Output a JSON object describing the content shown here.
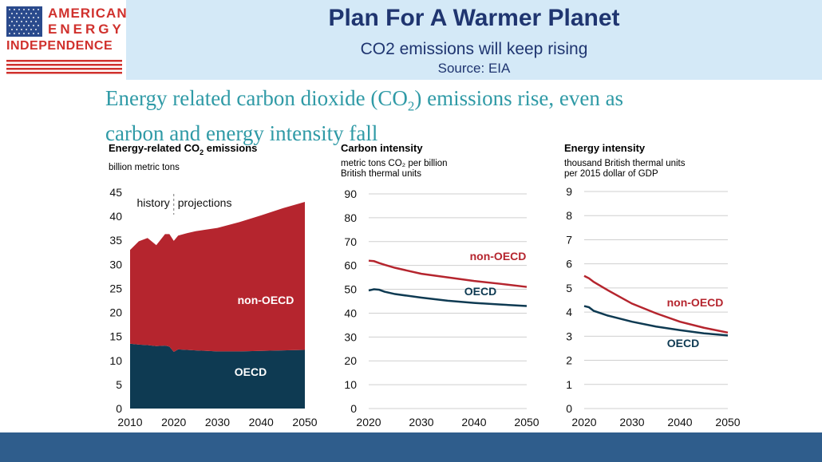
{
  "header": {
    "logo": {
      "line1": "AMERICAN",
      "line2": "ENERGY",
      "line3": "INDEPENDENCE"
    },
    "title": "Plan For A Warmer Planet",
    "subtitle": "CO2 emissions will keep rising",
    "source": "Source: EIA"
  },
  "headline": {
    "line1_pre": "Energy related carbon dioxide (CO",
    "line1_sub": "2",
    "line1_post": ") emissions rise, even as",
    "line2": "carbon and energy intensity fall"
  },
  "colors": {
    "non_oecd": "#b5252e",
    "oecd": "#0e3a52",
    "title": "#1f3570",
    "headline": "#2f9aa6",
    "footer": "#2f5d8c"
  },
  "chart_data": [
    {
      "type": "area",
      "title_pre": "Energy-related CO",
      "title_sub": "2",
      "title_post": " emissions",
      "subtitle_lines": [
        "billion metric tons"
      ],
      "ylim": [
        0,
        45
      ],
      "yticks": [
        0,
        5,
        10,
        15,
        20,
        25,
        30,
        35,
        40,
        45
      ],
      "xlim": [
        2010,
        2050
      ],
      "xticks": [
        2010,
        2020,
        2030,
        2040,
        2050
      ],
      "stacked": true,
      "annotations": {
        "history": "history",
        "projections": "projections",
        "divider_year": 2020
      },
      "x": [
        2010,
        2012,
        2014,
        2016,
        2018,
        2019,
        2020,
        2021,
        2023,
        2025,
        2030,
        2035,
        2040,
        2045,
        2050
      ],
      "series": [
        {
          "name": "OECD",
          "color": "#0e3a52",
          "values": [
            13.5,
            13.3,
            13.2,
            13.0,
            13.1,
            12.9,
            11.8,
            12.3,
            12.2,
            12.1,
            11.9,
            11.9,
            12.0,
            12.1,
            12.2
          ]
        },
        {
          "name": "non-OECD",
          "color": "#b5252e",
          "values": [
            19.5,
            21.5,
            22.3,
            21.0,
            23.2,
            23.4,
            23.1,
            23.7,
            24.3,
            24.8,
            25.7,
            26.9,
            28.2,
            29.6,
            30.8
          ]
        }
      ]
    },
    {
      "type": "line",
      "title_pre": "Carbon intensity",
      "title_sub": "",
      "title_post": "",
      "subtitle_lines": [
        "metric tons CO₂ per billion",
        "British thermal units"
      ],
      "ylim": [
        0,
        90
      ],
      "yticks": [
        0,
        10,
        20,
        30,
        40,
        50,
        60,
        70,
        80,
        90
      ],
      "xlim": [
        2020,
        2050
      ],
      "xticks": [
        2020,
        2030,
        2040,
        2050
      ],
      "x": [
        2020,
        2021,
        2022,
        2023,
        2025,
        2030,
        2035,
        2040,
        2045,
        2050
      ],
      "series": [
        {
          "name": "non-OECD",
          "color": "#b5252e",
          "values": [
            62.0,
            61.8,
            61.0,
            60.3,
            59.0,
            56.5,
            55.0,
            53.5,
            52.3,
            51.0
          ]
        },
        {
          "name": "OECD",
          "color": "#0e3a52",
          "values": [
            49.5,
            50.0,
            49.8,
            49.0,
            48.0,
            46.5,
            45.2,
            44.3,
            43.6,
            43.0
          ]
        }
      ]
    },
    {
      "type": "line",
      "title_pre": "Energy intensity",
      "title_sub": "",
      "title_post": "",
      "subtitle_lines": [
        "thousand British thermal units",
        "per 2015 dollar of GDP"
      ],
      "ylim": [
        0,
        9
      ],
      "yticks": [
        0,
        1,
        2,
        3,
        4,
        5,
        6,
        7,
        8,
        9
      ],
      "xlim": [
        2020,
        2050
      ],
      "xticks": [
        2020,
        2030,
        2040,
        2050
      ],
      "x": [
        2020,
        2021,
        2022,
        2025,
        2030,
        2035,
        2040,
        2045,
        2050
      ],
      "series": [
        {
          "name": "non-OECD",
          "color": "#b5252e",
          "values": [
            5.5,
            5.4,
            5.25,
            4.9,
            4.35,
            3.95,
            3.6,
            3.35,
            3.15
          ]
        },
        {
          "name": "OECD",
          "color": "#0e3a52",
          "values": [
            4.25,
            4.2,
            4.05,
            3.85,
            3.6,
            3.4,
            3.25,
            3.12,
            3.03
          ]
        }
      ]
    }
  ]
}
